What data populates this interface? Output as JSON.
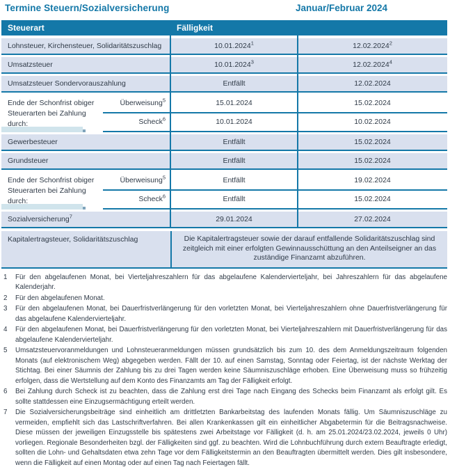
{
  "title": "Termine Steuern/Sozialversicherung",
  "period": "Januar/Februar 2024",
  "colors": {
    "brand": "#1478a8",
    "row_bg": "#d9e0ee",
    "strip": "#d0e4ec",
    "text": "#2f3a47"
  },
  "table": {
    "col_steuerart": "Steuerart",
    "col_faelligkeit": "Fälligkeit",
    "rows": [
      {
        "label": "Lohnsteuer, Kirchensteuer, Solidaritätszuschlag",
        "jan": "10.01.2024",
        "jan_sup": "1",
        "feb": "12.02.2024",
        "feb_sup": "2"
      },
      {
        "label": "Umsatzsteuer",
        "jan": "10.01.2024",
        "jan_sup": "3",
        "feb": "12.02.2024",
        "feb_sup": "4"
      },
      {
        "label": "Umsatzsteuer Sondervorauszahlung",
        "jan": "Entfällt",
        "jan_sup": "",
        "feb": "12.02.2024",
        "feb_sup": ""
      }
    ],
    "schonfrist1": {
      "label": "Ende der Schonfrist obiger Steuerarten bei Zahlung durch:",
      "ueberweisung": {
        "method": "Überweisung",
        "sup": "5",
        "jan": "15.01.2024",
        "feb": "15.02.2024"
      },
      "scheck": {
        "method": "Scheck",
        "sup": "6",
        "jan": "10.01.2024",
        "feb": "10.02.2024"
      }
    },
    "rows2": [
      {
        "label": "Gewerbesteuer",
        "jan": "Entfällt",
        "feb": "15.02.2024"
      },
      {
        "label": "Grundsteuer",
        "jan": "Entfällt",
        "feb": "15.02.2024"
      }
    ],
    "schonfrist2": {
      "label": "Ende der Schonfrist obiger Steuerarten bei Zahlung durch:",
      "ueberweisung": {
        "method": "Überweisung",
        "sup": "5",
        "jan": "Entfällt",
        "feb": "19.02.2024"
      },
      "scheck": {
        "method": "Scheck",
        "sup": "6",
        "jan": "Entfällt",
        "feb": "15.02.2024"
      }
    },
    "sozial": {
      "label": "Sozialversicherung",
      "sup": "7",
      "jan": "29.01.2024",
      "feb": "27.02.2024"
    },
    "kapital": {
      "label": "Kapitalertragsteuer, Solidaritätszuschlag",
      "note": "Die Kapitalertragsteuer sowie der darauf entfallende Solidaritätszuschlag sind zeitgleich mit einer erfolgten Gewinnausschüttung an den Anteilseigner an das zuständige Finanzamt abzuführen."
    }
  },
  "footnotes": [
    {
      "num": "1",
      "text": "Für den abgelaufenen Monat, bei Vierteljahreszahlern für das abgelaufene Kalendervierteljahr, bei Jahreszahlern für das abgelaufene Kalenderjahr."
    },
    {
      "num": "2",
      "text": "Für den abgelaufenen Monat."
    },
    {
      "num": "3",
      "text": "Für den abgelaufenen Monat, bei Dauerfristverlängerung für den vorletzten Monat, bei Vierteljahreszahlern ohne Dauerfristverlängerung für das abgelaufene Kalendervierteljahr."
    },
    {
      "num": "4",
      "text": "Für den abgelaufenen Monat, bei Dauerfristverlängerung für den vorletzten Monat, bei Vierteljahreszahlern mit Dauerfristverlängerung für das abgelaufene Kalendervierteljahr."
    },
    {
      "num": "5",
      "text": "Umsatzsteuervoranmeldungen und Lohnsteueranmeldungen müssen grundsätzlich bis zum 10. des dem Anmeldungszeitraum folgenden Monats (auf elektronischem Weg) abgegeben werden. Fällt der 10. auf einen Samstag, Sonntag oder Feiertag, ist der nächste Werktag der Stichtag. Bei einer Säumnis der Zahlung bis zu drei Tagen werden keine Säumniszuschläge erhoben. Eine Überweisung muss so frühzeitig erfolgen, dass die Wertstellung auf dem Konto des Finanzamts am Tag der Fälligkeit erfolgt."
    },
    {
      "num": "6",
      "text": "Bei Zahlung durch Scheck ist zu beachten, dass die Zahlung erst drei Tage nach Eingang des Schecks beim Finanzamt als erfolgt gilt. Es sollte stattdessen eine Einzugsermächtigung erteilt werden."
    },
    {
      "num": "7",
      "text": "Die Sozialversicherungsbeiträge sind einheitlich am drittletzten Bankarbeitstag des laufenden Monats fällig. Um Säumniszuschläge zu vermeiden, empfiehlt sich das Lastschriftverfahren. Bei allen Krankenkassen gilt ein einheitlicher Abgabetermin für die Beitragsnachweise. Diese müssen der jeweiligen Einzugsstelle bis spätestens zwei Arbeitstage vor Fälligkeit (d. h. am 25.01.2024/23.02.2024, jeweils 0 Uhr) vorliegen. Regionale Besonderheiten bzgl. der Fälligkeiten sind ggf. zu beachten. Wird die Lohnbuchführung durch extern Beauftragte erledigt, sollten die Lohn- und Gehaltsdaten etwa zehn Tage vor dem Fälligkeitstermin an den Beauftragten übermittelt werden. Dies gilt insbesondere, wenn die Fälligkeit auf einen Montag oder auf einen Tag nach Feiertagen fällt."
    }
  ]
}
